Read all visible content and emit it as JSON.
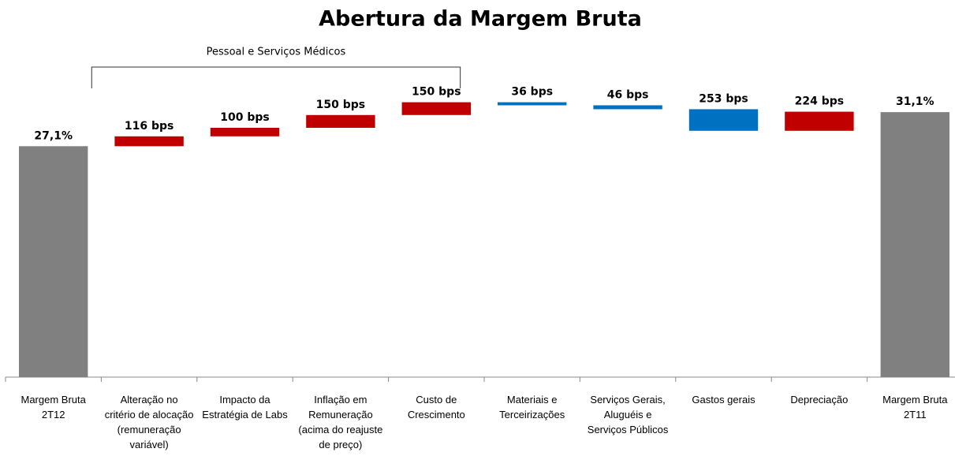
{
  "chart_data": {
    "type": "waterfall",
    "title": "Abertura da Margem Bruta",
    "categories": [
      "Margem Bruta 2T12",
      "Alteração no critério de alocação (remuneração variável)",
      "Impacto da Estratégia de Labs",
      "Inflação em Remuneração (acima do reajuste de preço)",
      "Custo de Crescimento",
      "Materiais e Terceirizações",
      "Serviços Gerais, Aluguéis e Serviços Públicos",
      "Gastos gerais",
      "Depreciação",
      "Margem Bruta 2T11"
    ],
    "measures": [
      "absolute",
      "relative",
      "relative",
      "relative",
      "relative",
      "relative",
      "relative",
      "relative",
      "relative",
      "absolute"
    ],
    "values": [
      27.1,
      1.16,
      1.0,
      1.5,
      1.5,
      -0.36,
      -0.46,
      -2.53,
      2.24,
      31.1
    ],
    "value_labels": [
      "27,1%",
      "116 bps",
      "100 bps",
      "150 bps",
      "150 bps",
      "36 bps",
      "46 bps",
      "253 bps",
      "224 bps",
      "31,1%"
    ],
    "colors": {
      "absolute": "#808080",
      "increase": "#c00000",
      "decrease": "#0070c0"
    },
    "ylim": [
      0,
      40
    ],
    "bracket": {
      "label": "Pessoal e Serviços Médicos",
      "categories": [
        1,
        4
      ]
    }
  }
}
